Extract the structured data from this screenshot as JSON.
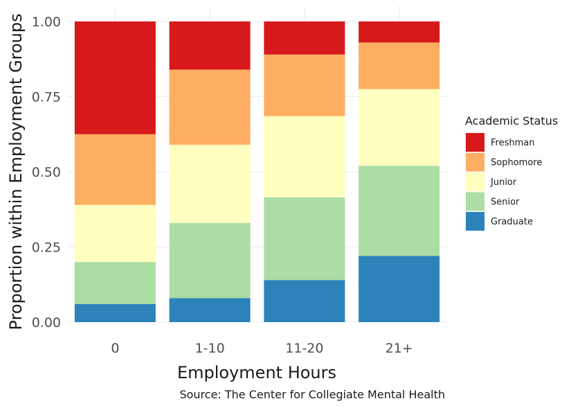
{
  "chart_data": {
    "type": "bar",
    "stacked": true,
    "categories": [
      "0",
      "1-10",
      "11-20",
      "21+"
    ],
    "series": [
      {
        "name": "Graduate",
        "color": "#2b83ba",
        "values": [
          0.06,
          0.08,
          0.14,
          0.22
        ]
      },
      {
        "name": "Senior",
        "color": "#abdda4",
        "values": [
          0.14,
          0.25,
          0.275,
          0.3
        ]
      },
      {
        "name": "Junior",
        "color": "#ffffbf",
        "values": [
          0.19,
          0.26,
          0.27,
          0.255
        ]
      },
      {
        "name": "Sophomore",
        "color": "#fdae61",
        "values": [
          0.235,
          0.25,
          0.205,
          0.155
        ]
      },
      {
        "name": "Freshman",
        "color": "#d7191c",
        "values": [
          0.375,
          0.16,
          0.11,
          0.07
        ]
      }
    ],
    "legend_order": [
      "Freshman",
      "Sophomore",
      "Junior",
      "Senior",
      "Graduate"
    ],
    "legend_title": "Academic Status",
    "legend_position": "right",
    "xlabel": "Employment Hours",
    "ylabel": "Proportion within Employment Groups",
    "ylim": [
      0,
      1
    ],
    "yticks": [
      "0.00",
      "0.25",
      "0.50",
      "0.75",
      "1.00"
    ],
    "grid": true,
    "caption": "Source: The Center for Collegiate Mental Health"
  }
}
